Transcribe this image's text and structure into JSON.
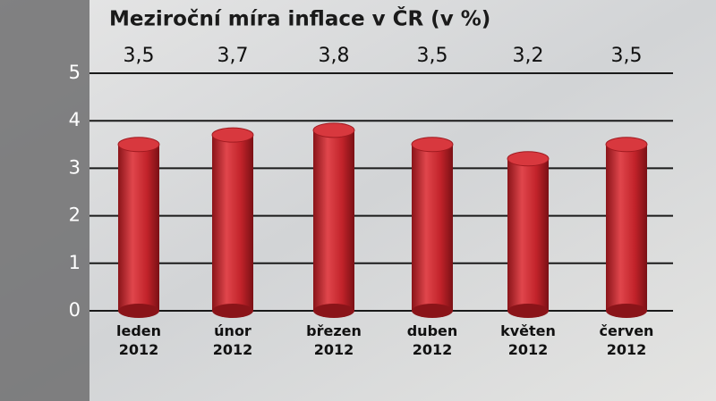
{
  "chart_data": {
    "type": "bar",
    "title": "Meziroční míra inflace v ČR (v %)",
    "categories": [
      "leden 2012",
      "únor 2012",
      "březen 2012",
      "duben 2012",
      "květen 2012",
      "červen 2012"
    ],
    "values": [
      3.5,
      3.7,
      3.8,
      3.5,
      3.2,
      3.5
    ],
    "value_labels": [
      "3,5",
      "3,7",
      "3,8",
      "3,5",
      "3,2",
      "3,5"
    ],
    "color": "#c8262e",
    "ylim": [
      0,
      5
    ],
    "yticks": [
      0,
      1,
      2,
      3,
      4,
      5
    ],
    "grid": true
  }
}
